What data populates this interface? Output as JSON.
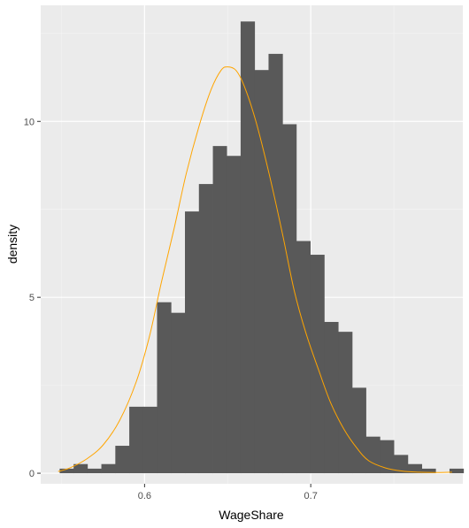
{
  "chart_data": {
    "type": "bar",
    "subtype": "histogram with density curve",
    "title": "",
    "xlabel": "WageShare",
    "ylabel": "density",
    "xlim": [
      0.5375,
      0.7915
    ],
    "ylim": [
      -0.3,
      13.3
    ],
    "x_ticks": [
      {
        "value": 0.6,
        "label": "0.6"
      },
      {
        "value": 0.7,
        "label": "0.7"
      }
    ],
    "y_ticks": [
      {
        "value": 0,
        "label": "0"
      },
      {
        "value": 5,
        "label": "5"
      },
      {
        "value": 10,
        "label": "10"
      }
    ],
    "bin_width": 0.00838,
    "bins": [
      {
        "x0": 0.5489,
        "x1": 0.5573,
        "density": 0.13
      },
      {
        "x0": 0.5573,
        "x1": 0.5656,
        "density": 0.26
      },
      {
        "x0": 0.5656,
        "x1": 0.574,
        "density": 0.13
      },
      {
        "x0": 0.574,
        "x1": 0.5824,
        "density": 0.26
      },
      {
        "x0": 0.5824,
        "x1": 0.5908,
        "density": 0.78
      },
      {
        "x0": 0.5908,
        "x1": 0.5992,
        "density": 1.89
      },
      {
        "x0": 0.5992,
        "x1": 0.6075,
        "density": 1.89
      },
      {
        "x0": 0.6075,
        "x1": 0.6159,
        "density": 4.86
      },
      {
        "x0": 0.6159,
        "x1": 0.6243,
        "density": 4.56
      },
      {
        "x0": 0.6243,
        "x1": 0.6327,
        "density": 7.44
      },
      {
        "x0": 0.6327,
        "x1": 0.6411,
        "density": 8.22
      },
      {
        "x0": 0.6411,
        "x1": 0.6494,
        "density": 9.3
      },
      {
        "x0": 0.6494,
        "x1": 0.6578,
        "density": 9.02
      },
      {
        "x0": 0.6578,
        "x1": 0.6662,
        "density": 12.84
      },
      {
        "x0": 0.6662,
        "x1": 0.6746,
        "density": 11.46
      },
      {
        "x0": 0.6746,
        "x1": 0.683,
        "density": 11.92
      },
      {
        "x0": 0.683,
        "x1": 0.6913,
        "density": 9.92
      },
      {
        "x0": 0.6913,
        "x1": 0.6997,
        "density": 6.6
      },
      {
        "x0": 0.6997,
        "x1": 0.7081,
        "density": 6.21
      },
      {
        "x0": 0.7081,
        "x1": 0.7165,
        "density": 4.3
      },
      {
        "x0": 0.7165,
        "x1": 0.7249,
        "density": 4.02
      },
      {
        "x0": 0.7249,
        "x1": 0.7332,
        "density": 2.43
      },
      {
        "x0": 0.7332,
        "x1": 0.7416,
        "density": 1.04
      },
      {
        "x0": 0.7416,
        "x1": 0.75,
        "density": 0.94
      },
      {
        "x0": 0.75,
        "x1": 0.7584,
        "density": 0.52
      },
      {
        "x0": 0.7584,
        "x1": 0.7668,
        "density": 0.26
      },
      {
        "x0": 0.7668,
        "x1": 0.7751,
        "density": 0.13
      },
      {
        "x0": 0.7751,
        "x1": 0.7835,
        "density": 0.0
      },
      {
        "x0": 0.7835,
        "x1": 0.7919,
        "density": 0.13
      }
    ],
    "density_curve": {
      "x": [
        0.548,
        0.555,
        0.565,
        0.575,
        0.585,
        0.595,
        0.603,
        0.61,
        0.618,
        0.625,
        0.633,
        0.64,
        0.646,
        0.65,
        0.655,
        0.66,
        0.667,
        0.675,
        0.683,
        0.69,
        0.697,
        0.705,
        0.712,
        0.72,
        0.728,
        0.735,
        0.745,
        0.755,
        0.765,
        0.775,
        0.785
      ],
      "y": [
        0.05,
        0.15,
        0.4,
        0.8,
        1.5,
        2.6,
        3.9,
        5.4,
        7.0,
        8.5,
        9.9,
        10.9,
        11.45,
        11.55,
        11.45,
        11.0,
        10.0,
        8.5,
        6.8,
        5.2,
        4.0,
        2.9,
        2.0,
        1.25,
        0.7,
        0.35,
        0.15,
        0.06,
        0.03,
        0.02,
        0.03
      ]
    },
    "grid": true,
    "legend": "none",
    "colors": {
      "panel_background": "#ebebeb",
      "grid_major": "#ffffff",
      "grid_minor": "#f5f5f5",
      "bar_fill": "#595959",
      "density_line": "#ffa500",
      "tick_text": "#4d4d4d",
      "axis_title_text": "#000000"
    }
  }
}
